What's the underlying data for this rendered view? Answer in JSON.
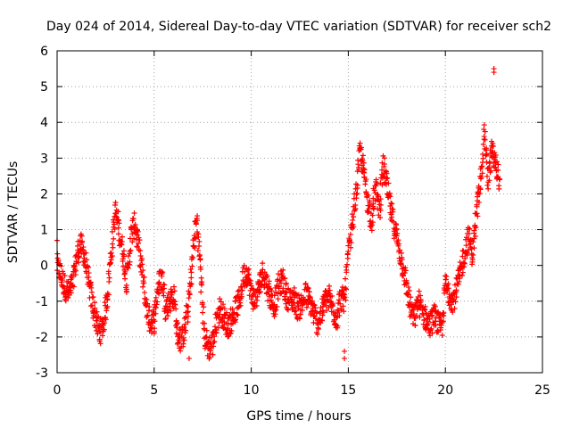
{
  "chart_data": {
    "type": "scatter",
    "title": "Day 024 of 2014, Sidereal Day-to-day VTEC variation (SDTVAR) for receiver sch2",
    "xlabel": "GPS time / hours",
    "ylabel": "SDTVAR / TECUs",
    "xlim": [
      0,
      25
    ],
    "ylim": [
      -3,
      6
    ],
    "xticks": [
      "0",
      "5",
      "10",
      "15",
      "20",
      "25"
    ],
    "yticks": [
      "-3",
      "-2",
      "-1",
      "0",
      "1",
      "2",
      "3",
      "4",
      "5",
      "6"
    ],
    "grid": true,
    "marker": "+",
    "color": "#ff0000",
    "series": [
      {
        "name": "SDTVAR",
        "x": [
          0.0,
          0.2,
          0.4,
          0.6,
          0.8,
          1.0,
          1.2,
          1.4,
          1.6,
          1.8,
          2.0,
          2.2,
          2.4,
          2.6,
          2.8,
          3.0,
          3.2,
          3.4,
          3.6,
          3.8,
          4.0,
          4.2,
          4.4,
          4.6,
          4.8,
          5.0,
          5.2,
          5.4,
          5.6,
          5.8,
          6.0,
          6.2,
          6.4,
          6.6,
          6.8,
          7.0,
          7.2,
          7.4,
          7.6,
          7.8,
          8.0,
          8.2,
          8.4,
          8.6,
          8.8,
          9.0,
          9.2,
          9.4,
          9.6,
          9.8,
          10.0,
          10.2,
          10.4,
          10.6,
          10.8,
          11.0,
          11.2,
          11.4,
          11.6,
          11.8,
          12.0,
          12.2,
          12.4,
          12.6,
          12.8,
          13.0,
          13.2,
          13.4,
          13.6,
          13.8,
          14.0,
          14.2,
          14.4,
          14.6,
          14.8,
          15.0,
          15.2,
          15.4,
          15.6,
          15.8,
          16.0,
          16.2,
          16.4,
          16.6,
          16.8,
          17.0,
          17.2,
          17.4,
          17.6,
          17.8,
          18.0,
          18.2,
          18.4,
          18.6,
          18.8,
          19.0,
          19.2,
          19.4,
          19.6,
          19.8,
          20.0,
          20.2,
          20.4,
          20.6,
          20.8,
          21.0,
          21.2,
          21.4,
          21.6,
          21.8,
          22.0,
          22.2,
          22.4,
          22.6,
          22.8
        ],
        "values": [
          0.0,
          -0.3,
          -0.6,
          -0.8,
          -0.5,
          0.2,
          0.6,
          0.3,
          -0.4,
          -1.0,
          -1.5,
          -1.9,
          -1.6,
          -0.8,
          0.4,
          1.5,
          1.0,
          0.3,
          -0.5,
          0.8,
          1.2,
          0.5,
          -0.3,
          -1.2,
          -1.6,
          -1.5,
          -0.6,
          -0.3,
          -1.2,
          -1.0,
          -0.8,
          -1.9,
          -2.1,
          -1.7,
          -1.0,
          0.4,
          1.3,
          -0.2,
          -2.0,
          -2.3,
          -2.2,
          -1.6,
          -1.2,
          -1.5,
          -1.7,
          -1.5,
          -1.2,
          -1.0,
          -0.3,
          -0.2,
          -0.8,
          -1.0,
          -0.6,
          -0.2,
          -0.5,
          -0.9,
          -1.1,
          -0.6,
          -0.4,
          -0.8,
          -1.0,
          -0.9,
          -1.2,
          -1.1,
          -0.8,
          -1.0,
          -1.3,
          -1.6,
          -1.4,
          -1.0,
          -0.9,
          -1.2,
          -1.5,
          -0.9,
          -1.0,
          0.3,
          1.1,
          2.0,
          3.2,
          2.6,
          1.8,
          1.3,
          2.2,
          1.6,
          2.8,
          2.2,
          1.5,
          1.0,
          0.5,
          0.0,
          -0.6,
          -1.2,
          -1.5,
          -1.0,
          -1.3,
          -1.5,
          -1.7,
          -1.4,
          -1.6,
          -1.8,
          -0.5,
          -0.8,
          -1.0,
          -0.6,
          -0.2,
          0.4,
          0.8,
          0.3,
          1.4,
          2.2,
          3.8,
          2.4,
          3.2,
          2.8,
          2.4
        ],
        "outliers": {
          "x": [
            22.5,
            22.5,
            14.8,
            14.8,
            0.0,
            6.8,
            5.0
          ],
          "values": [
            5.5,
            5.4,
            -2.6,
            -2.4,
            0.7,
            -2.6,
            -1.9
          ]
        }
      }
    ]
  }
}
